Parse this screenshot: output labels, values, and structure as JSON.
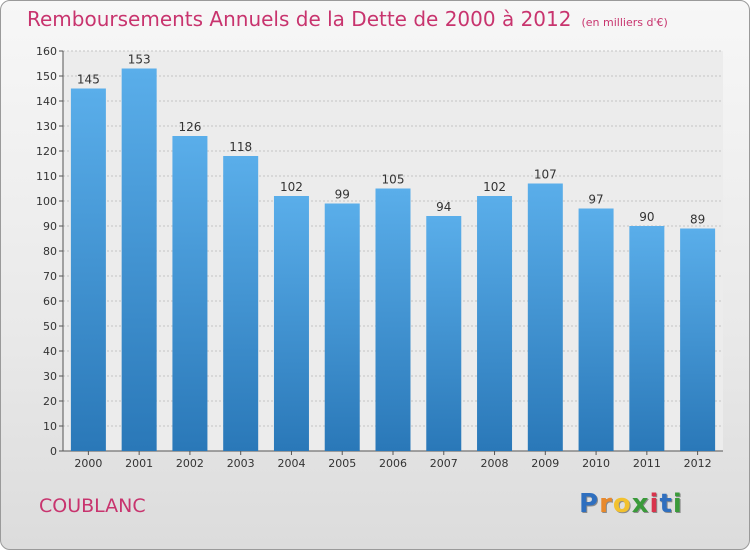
{
  "chart_data": {
    "type": "bar",
    "title": "Remboursements Annuels de la Dette de 2000 à 2012",
    "unit_label": "(en milliers d'€)",
    "categories": [
      "2000",
      "2001",
      "2002",
      "2003",
      "2004",
      "2005",
      "2006",
      "2007",
      "2008",
      "2009",
      "2010",
      "2011",
      "2012"
    ],
    "values": [
      145,
      153,
      126,
      118,
      102,
      99,
      105,
      94,
      102,
      107,
      97,
      90,
      89
    ],
    "ylim": [
      0,
      160
    ],
    "ytick_step": 10,
    "xlabel": "",
    "ylabel": "",
    "grid": true,
    "bar_color_top": "#5aaeea",
    "bar_color_bottom": "#2a78b8"
  },
  "commune": "COUBLANC",
  "logo": {
    "letters": [
      "P",
      "r",
      "o",
      "x",
      "i",
      "t",
      "i"
    ],
    "colors": [
      "#2f6fbf",
      "#e8892c",
      "#f2c12e",
      "#3a9a3a",
      "#d8344c",
      "#2f6fbf",
      "#3a9a3a"
    ]
  }
}
